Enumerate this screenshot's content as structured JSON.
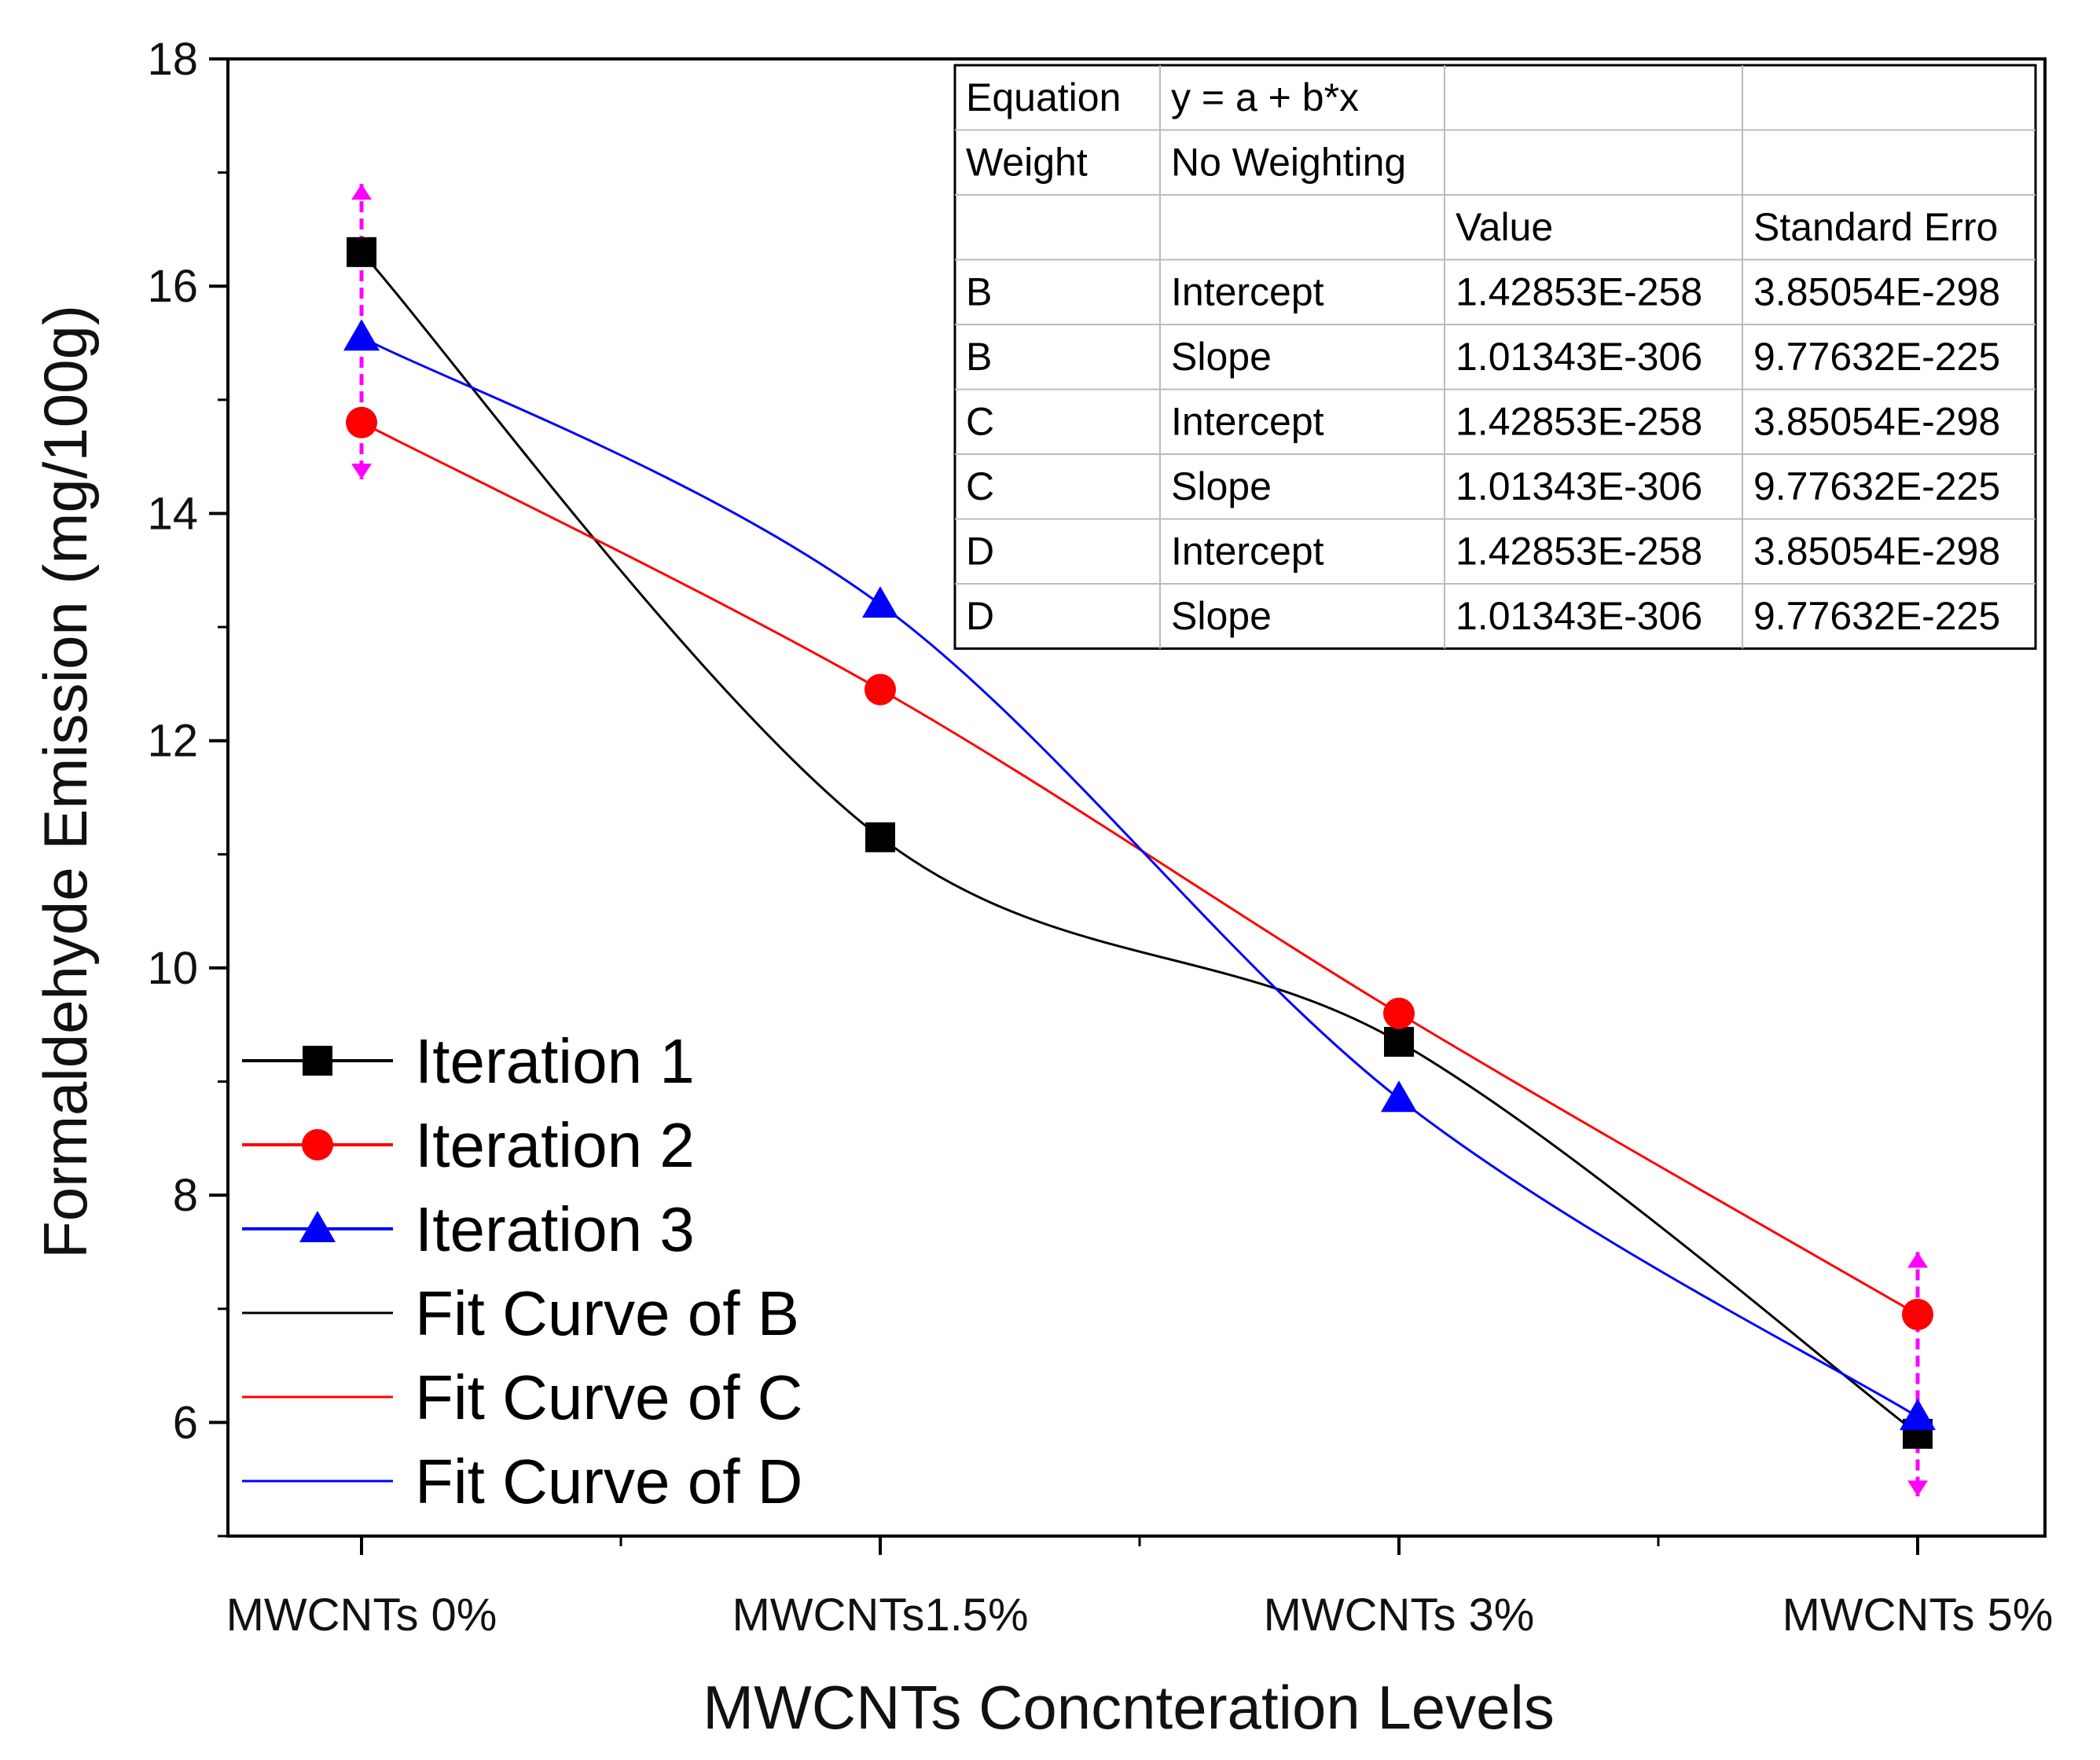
{
  "chart_data": {
    "type": "line",
    "title": "",
    "xlabel": "MWCNTs Concnteration Levels",
    "ylabel": "Formaldehyde Emission (mg/100g)",
    "categories": [
      "MWCNTs 0%",
      "MWCNTs1.5%",
      "MWCNTs 3%",
      "MWCNTs 5%"
    ],
    "ylim": [
      5,
      18
    ],
    "yticks": [
      6,
      8,
      10,
      12,
      14,
      16,
      18
    ],
    "series": [
      {
        "name": "Iteration 1",
        "marker": "square",
        "color": "#000000",
        "values": [
          16.3,
          11.15,
          9.35,
          5.9
        ]
      },
      {
        "name": "Iteration 2",
        "marker": "circle",
        "color": "#ff0000",
        "values": [
          14.8,
          12.45,
          9.6,
          6.95
        ]
      },
      {
        "name": "Iteration 3",
        "marker": "triangle",
        "color": "#0000ff",
        "values": [
          15.55,
          13.2,
          8.85,
          6.05
        ]
      }
    ],
    "fit_curves": [
      {
        "name": "Fit Curve of B",
        "color": "#000000"
      },
      {
        "name": "Fit Curve of C",
        "color": "#ff0000"
      },
      {
        "name": "Fit Curve of D",
        "color": "#0000ff"
      }
    ],
    "error_bars": {
      "color": "#ff00ff",
      "items": [
        {
          "category_index": 0,
          "low": 14.3,
          "high": 16.9
        },
        {
          "category_index": 3,
          "low": 5.35,
          "high": 7.5
        }
      ]
    },
    "legend_position": "bottom-left",
    "fit_table": {
      "rows": [
        [
          "Equation",
          "y = a + b*x",
          "",
          ""
        ],
        [
          "Weight",
          "No Weighting",
          "",
          ""
        ],
        [
          "",
          "",
          "Value",
          "Standard Erro"
        ],
        [
          "B",
          "Intercept",
          "1.42853E-258",
          "3.85054E-298"
        ],
        [
          "B",
          "Slope",
          "1.01343E-306",
          "9.77632E-225"
        ],
        [
          "C",
          "Intercept",
          "1.42853E-258",
          "3.85054E-298"
        ],
        [
          "C",
          "Slope",
          "1.01343E-306",
          "9.77632E-225"
        ],
        [
          "D",
          "Intercept",
          "1.42853E-258",
          "3.85054E-298"
        ],
        [
          "D",
          "Slope",
          "1.01343E-306",
          "9.77632E-225"
        ]
      ]
    }
  }
}
